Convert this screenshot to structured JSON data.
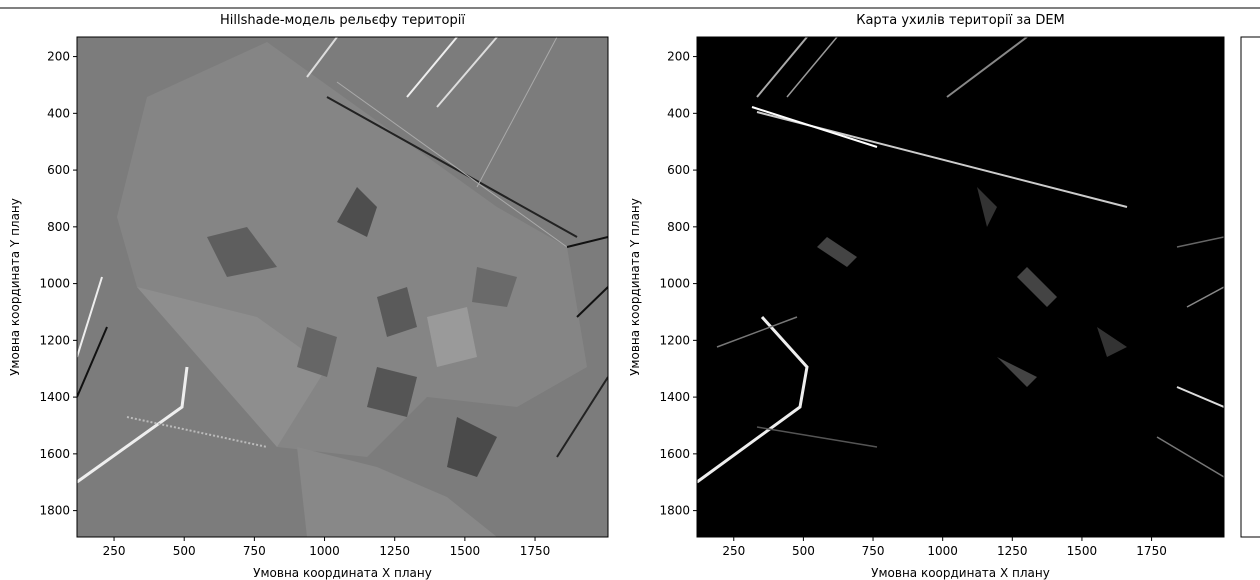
{
  "chart_data": [
    {
      "type": "image",
      "title": "Hillshade-модель рельєфу території",
      "xlabel": "Умовна координата X плану",
      "ylabel": "Умовна координата Y плану",
      "xlim": [
        118,
        2010
      ],
      "ylim": [
        1893,
        131
      ],
      "xticks": [
        250,
        500,
        750,
        1000,
        1250,
        1500,
        1750
      ],
      "yticks": [
        200,
        400,
        600,
        800,
        1000,
        1200,
        1400,
        1600,
        1800
      ]
    },
    {
      "type": "image",
      "title": "Карта ухилів території за DEM",
      "xlabel": "Умовна координата X плану",
      "ylabel": "Умовна координата Y плану",
      "xlim": [
        118,
        2010
      ],
      "ylim": [
        1893,
        131
      ],
      "xticks": [
        250,
        500,
        750,
        1000,
        1250,
        1500,
        1750
      ],
      "yticks": [
        200,
        400,
        600,
        800,
        1000,
        1200,
        1400,
        1600,
        1800
      ]
    }
  ]
}
